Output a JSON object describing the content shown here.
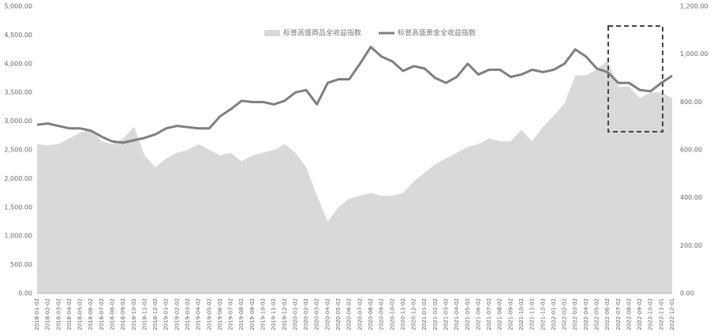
{
  "chart_data": {
    "type": "area-line",
    "categories": [
      "2018-01-02",
      "2018-02-02",
      "2018-03-02",
      "2018-04-02",
      "2018-05-02",
      "2018-06-02",
      "2018-07-02",
      "2018-08-02",
      "2018-09-02",
      "2018-10-02",
      "2018-11-02",
      "2018-12-02",
      "2019-01-02",
      "2019-02-02",
      "2019-03-02",
      "2019-04-02",
      "2019-05-02",
      "2019-06-02",
      "2019-07-02",
      "2019-08-02",
      "2019-09-02",
      "2019-10-02",
      "2019-11-02",
      "2019-12-02",
      "2020-01-02",
      "2020-02-02",
      "2020-03-02",
      "2020-04-02",
      "2020-05-02",
      "2020-06-02",
      "2020-07-02",
      "2020-08-02",
      "2020-09-02",
      "2020-10-02",
      "2020-11-02",
      "2020-12-02",
      "2021-01-02",
      "2021-02-02",
      "2021-03-02",
      "2021-04-02",
      "2021-05-02",
      "2021-06-02",
      "2021-07-02",
      "2021-08-02",
      "2021-09-02",
      "2021-10-02",
      "2021-11-02",
      "2021-12-02",
      "2022-01-02",
      "2022-02-02",
      "2022-03-02",
      "2022-04-02",
      "2022-05-02",
      "2022-06-02",
      "2022-07-02",
      "2022-08-02",
      "2022-09-02",
      "2022-10-02",
      "2022-11-01",
      "2022-12-01"
    ],
    "series": [
      {
        "name": "标普高盛商品全收益指数",
        "color": "#d9d9d9",
        "kind": "area",
        "axis": "y",
        "values": [
          2600,
          2580,
          2600,
          2700,
          2800,
          2850,
          2650,
          2600,
          2700,
          2900,
          2400,
          2200,
          2350,
          2450,
          2500,
          2600,
          2500,
          2400,
          2450,
          2300,
          2400,
          2450,
          2500,
          2600,
          2450,
          2200,
          1700,
          1250,
          1500,
          1650,
          1700,
          1750,
          1700,
          1700,
          1750,
          1950,
          2100,
          2250,
          2350,
          2450,
          2550,
          2600,
          2700,
          2650,
          2650,
          2850,
          2650,
          2900,
          3100,
          3300,
          3800,
          3800,
          3900,
          4050,
          3600,
          3600,
          3400,
          3500,
          3500,
          3400
        ]
      },
      {
        "name": "标普高盛黄金全收益指数",
        "color": "#7f7f7f",
        "kind": "line",
        "axis": "y2",
        "values": [
          705,
          710,
          700,
          690,
          690,
          680,
          655,
          635,
          630,
          640,
          650,
          665,
          690,
          700,
          695,
          690,
          690,
          740,
          770,
          805,
          800,
          800,
          790,
          805,
          840,
          850,
          790,
          880,
          895,
          895,
          960,
          1030,
          990,
          970,
          930,
          950,
          940,
          900,
          880,
          905,
          960,
          915,
          935,
          935,
          905,
          915,
          935,
          925,
          935,
          960,
          1020,
          990,
          940,
          925,
          880,
          880,
          850,
          845,
          880,
          910
        ]
      }
    ],
    "ylim": [
      0,
      5000
    ],
    "yticks": [
      {
        "value": 0,
        "label": "0.00"
      },
      {
        "value": 500,
        "label": "500.00"
      },
      {
        "value": 1000,
        "label": "1,000.00"
      },
      {
        "value": 1500,
        "label": "1,500.00"
      },
      {
        "value": 2000,
        "label": "2,000.00"
      },
      {
        "value": 2500,
        "label": "2,500.00"
      },
      {
        "value": 3000,
        "label": "3,000.00"
      },
      {
        "value": 3500,
        "label": "3,500.00"
      },
      {
        "value": 4000,
        "label": "4,000.00"
      },
      {
        "value": 4500,
        "label": "4,500.00"
      },
      {
        "value": 5000,
        "label": "5,000.00"
      }
    ],
    "y2lim": [
      0,
      1200
    ],
    "y2ticks": [
      {
        "value": 0,
        "label": "0.00"
      },
      {
        "value": 200,
        "label": "200.00"
      },
      {
        "value": 400,
        "label": "400.00"
      },
      {
        "value": 600,
        "label": "600.00"
      },
      {
        "value": 800,
        "label": "800.00"
      },
      {
        "value": 1000,
        "label": "1,000.00"
      },
      {
        "value": 1200,
        "label": "1,200.00"
      }
    ],
    "grid": false,
    "legend": "top"
  }
}
